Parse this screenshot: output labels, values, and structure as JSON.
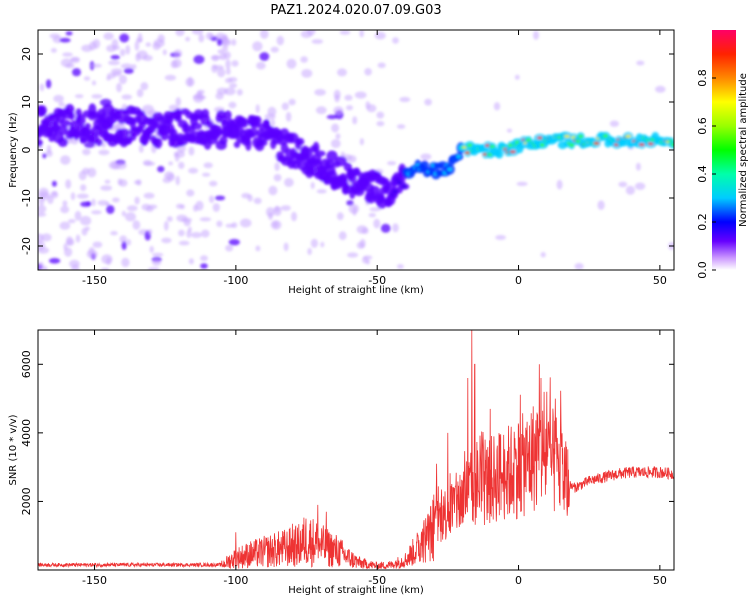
{
  "figure": {
    "title": "PAZ1.2024.020.07.09.G03"
  },
  "chart_data": [
    {
      "type": "heatmap",
      "title": "",
      "xlabel": "Height of straight line (km)",
      "ylabel": "Frequency (Hz)",
      "xlim": [
        -170,
        55
      ],
      "ylim": [
        -25,
        25
      ],
      "xticks": [
        -150,
        -100,
        -50,
        0,
        50
      ],
      "yticks": [
        -20,
        -10,
        0,
        10,
        20
      ],
      "colorbar": {
        "label": "Normalized spectral amplitude",
        "range": [
          0,
          1
        ],
        "ticks": [
          0.0,
          0.2,
          0.4,
          0.6,
          0.8
        ]
      },
      "ridge": {
        "x": [
          -168,
          -150,
          -130,
          -110,
          -100,
          -90,
          -80,
          -70,
          -60,
          -50,
          -45,
          -40,
          -35,
          -30,
          -25,
          -20,
          -15,
          -10,
          -5,
          0,
          5,
          10,
          15,
          20,
          30,
          40,
          55
        ],
        "y": [
          5,
          5,
          5,
          4.5,
          4,
          3,
          0,
          -3,
          -6,
          -8,
          -9,
          -5,
          -4,
          -4,
          -4,
          0,
          0,
          0,
          0,
          1,
          1.5,
          2,
          2,
          2,
          2,
          2,
          2
        ]
      }
    },
    {
      "type": "line",
      "title": "",
      "xlabel": "Height of straight line (km)",
      "ylabel": "SNR (10 * v/v)",
      "xlim": [
        -170,
        55
      ],
      "ylim": [
        0,
        7000
      ],
      "xticks": [
        -150,
        -100,
        -50,
        0,
        50
      ],
      "yticks": [
        2000,
        4000,
        6000
      ],
      "series": [
        {
          "color": "#ee3333",
          "envelope": {
            "x": [
              -170,
              -140,
              -105,
              -100,
              -95,
              -85,
              -78,
              -75,
              -72,
              -68,
              -64,
              -60,
              -56,
              -50,
              -45,
              -40,
              -35,
              -30,
              -28,
              -25,
              -22,
              -20,
              -18,
              -16,
              -15,
              -13,
              -10,
              -8,
              -5,
              -2,
              0,
              3,
              5,
              7,
              9,
              11,
              13,
              15,
              17,
              20,
              25,
              30,
              35,
              40,
              45,
              50,
              55
            ],
            "y": [
              150,
              150,
              150,
              350,
              450,
              600,
              700,
              900,
              800,
              650,
              550,
              350,
              200,
              120,
              150,
              300,
              700,
              1200,
              1500,
              1700,
              1900,
              2100,
              2300,
              2200,
              2600,
              2400,
              2600,
              2700,
              2800,
              2900,
              3000,
              3100,
              3300,
              3400,
              3300,
              3200,
              3100,
              3000,
              2500,
              2400,
              2600,
              2700,
              2800,
              2850,
              2850,
              2850,
              2800
            ]
          },
          "spikes": [
            {
              "x": -100,
              "y": 1100
            },
            {
              "x": -80,
              "y": 1350
            },
            {
              "x": -71,
              "y": 1900
            },
            {
              "x": -68,
              "y": 1700
            },
            {
              "x": -30,
              "y": 2200
            },
            {
              "x": -29,
              "y": 3100
            },
            {
              "x": -25,
              "y": 4000
            },
            {
              "x": -18,
              "y": 5600
            },
            {
              "x": -16.5,
              "y": 7000
            },
            {
              "x": -15.5,
              "y": 6000
            },
            {
              "x": -10,
              "y": 4700
            },
            {
              "x": 0,
              "y": 4200
            },
            {
              "x": 5,
              "y": 4400
            },
            {
              "x": 8,
              "y": 5600
            },
            {
              "x": 10,
              "y": 5200
            },
            {
              "x": 13,
              "y": 5000
            }
          ]
        }
      ]
    }
  ]
}
